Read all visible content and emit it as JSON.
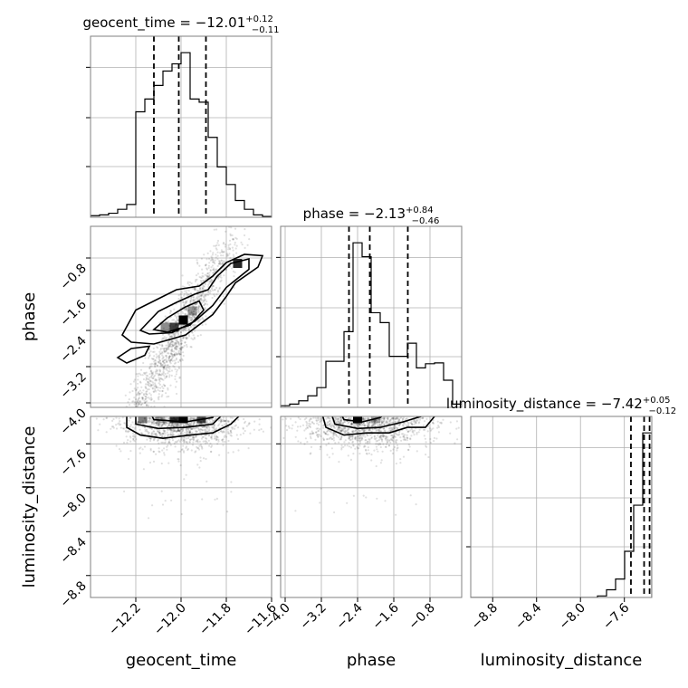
{
  "chart_data": {
    "type": "scatter",
    "kind": "corner",
    "parameters": [
      {
        "name": "geocent_time",
        "label": "geocent_time",
        "title": {
          "prefix": "geocent_time = −12.01",
          "plus": "+0.12",
          "minus": "−0.11"
        },
        "range": [
          -12.4,
          -11.6
        ],
        "ticks": [
          -12.2,
          -12.0,
          -11.8,
          -11.6
        ],
        "tick_labels": [
          "−12.2",
          "−12.0",
          "−11.8",
          "−11.6"
        ],
        "quantiles": [
          -12.12,
          -12.01,
          -11.89
        ],
        "histogram": {
          "edges": [
            -12.4,
            -12.36,
            -12.32,
            -12.28,
            -12.24,
            -12.2,
            -12.16,
            -12.12,
            -12.08,
            -12.04,
            -12.0,
            -11.96,
            -11.92,
            -11.88,
            -11.84,
            -11.8,
            -11.76,
            -11.72,
            -11.68,
            -11.64,
            -11.6
          ],
          "counts": [
            2,
            3,
            5,
            10,
            16,
            132,
            148,
            165,
            183,
            192,
            206,
            148,
            144,
            100,
            63,
            41,
            21,
            10,
            3,
            1
          ]
        }
      },
      {
        "name": "phase",
        "label": "phase",
        "title": {
          "prefix": "phase = −2.13",
          "plus": "+0.84",
          "minus": "−0.46"
        },
        "range": [
          -4.1,
          -0.1
        ],
        "ticks": [
          -4.0,
          -3.2,
          -2.4,
          -1.6,
          -0.8
        ],
        "tick_labels": [
          "−4.0",
          "−3.2",
          "−2.4",
          "−1.6",
          "−0.8"
        ],
        "quantiles": [
          -2.59,
          -2.13,
          -1.29
        ],
        "histogram": {
          "edges": [
            -4.1,
            -3.9,
            -3.7,
            -3.5,
            -3.3,
            -3.1,
            -2.9,
            -2.7,
            -2.5,
            -2.3,
            -2.1,
            -1.9,
            -1.7,
            -1.5,
            -1.3,
            -1.1,
            -0.9,
            -0.7,
            -0.5,
            -0.3,
            -0.1
          ],
          "counts": [
            2,
            4,
            8,
            14,
            24,
            56,
            56,
            92,
            200,
            183,
            115,
            103,
            62,
            62,
            78,
            48,
            53,
            54,
            33,
            4
          ]
        }
      },
      {
        "name": "luminosity_distance",
        "label": "luminosity_distance",
        "title": {
          "prefix": "luminosity_distance = −7.42",
          "plus": "+0.05",
          "minus": "−0.12"
        },
        "range": [
          -9.0,
          -7.35
        ],
        "ticks": [
          -8.8,
          -8.4,
          -8.0,
          -7.6
        ],
        "tick_labels": [
          "−8.8",
          "−8.4",
          "−8.0",
          "−7.6"
        ],
        "quantiles": [
          -7.54,
          -7.42,
          -7.37
        ],
        "histogram": {
          "edges": [
            -9.0,
            -8.9175,
            -8.835,
            -8.7525,
            -8.67,
            -8.5875,
            -8.505,
            -8.4225,
            -8.34,
            -8.2575,
            -8.175,
            -8.0925,
            -8.01,
            -7.9275,
            -7.845,
            -7.7625,
            -7.68,
            -7.5975,
            -7.515,
            -7.4325,
            -7.35
          ],
          "counts": [
            0,
            0,
            0,
            0,
            0,
            0,
            0,
            0,
            0,
            0,
            0,
            0,
            0,
            0,
            1,
            5,
            12,
            30,
            60,
            107
          ]
        }
      }
    ],
    "grid": true
  }
}
